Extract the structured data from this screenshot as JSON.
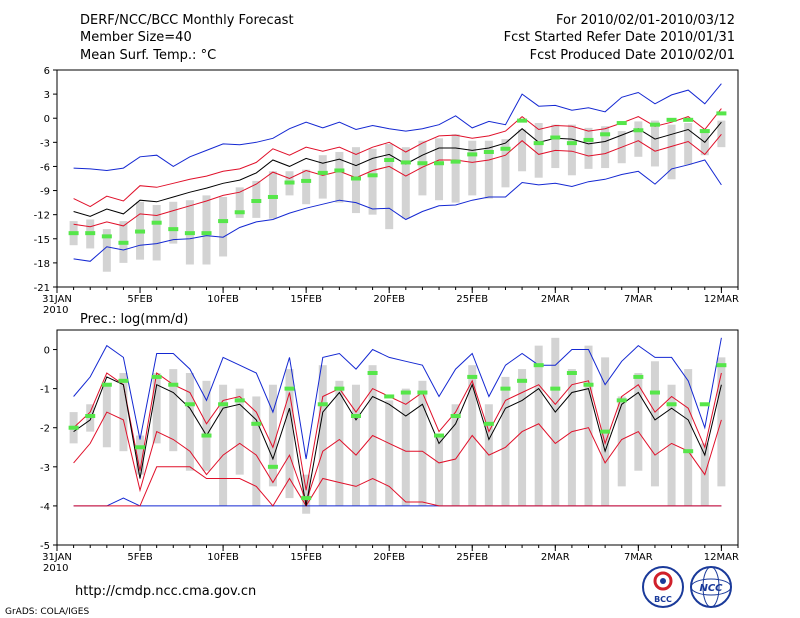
{
  "header": {
    "title": "DERF/NCC/BCC Monthly Forecast",
    "member_size": "Member Size=40",
    "variable": "Mean Surf. Temp.: °C",
    "period": "For 2010/02/01-2010/03/12",
    "started": "Fcst Started Refer Date 2010/01/31",
    "produced": "Fcst Produced Date 2010/02/01"
  },
  "footer": {
    "url": "http://cmdp.ncc.cma.gov.cn",
    "grads": "GrADS: COLA/IGES",
    "logo_bcc": "BCC",
    "logo_ncc": "NCC"
  },
  "colors": {
    "grey_bar": "#d3d3d3",
    "ensemble_mean": "#000000",
    "std_band": "#e0102a",
    "min_max": "#1428d2",
    "median_marker": "#56e64a"
  },
  "chart_data": [
    {
      "type": "line",
      "title": "Mean Surf. Temp.: °C",
      "ylim": [
        -21,
        6
      ],
      "yticks": [
        6,
        3,
        0,
        -3,
        -6,
        -9,
        -12,
        -15,
        -18,
        -21
      ],
      "x_tick_labels": [
        "31JAN",
        "5FEB",
        "10FEB",
        "15FEB",
        "20FEB",
        "25FEB",
        "2MAR",
        "7MAR",
        "12MAR"
      ],
      "x_tick_days": [
        0,
        5,
        10,
        15,
        20,
        25,
        30,
        35,
        40
      ],
      "x_sub_label": "2010",
      "days": [
        1,
        2,
        3,
        4,
        5,
        6,
        7,
        8,
        9,
        10,
        11,
        12,
        13,
        14,
        15,
        16,
        17,
        18,
        19,
        20,
        21,
        22,
        23,
        24,
        25,
        26,
        27,
        28,
        29,
        30,
        31,
        32,
        33,
        34,
        35,
        36,
        37,
        38,
        39,
        40
      ],
      "series": [
        {
          "name": "max",
          "values": [
            -6.2,
            -6.3,
            -6.5,
            -6.2,
            -4.8,
            -4.6,
            -6.0,
            -4.8,
            -4.0,
            -3.2,
            -3.3,
            -3.0,
            -2.5,
            -1.3,
            -0.5,
            -1.2,
            -0.5,
            -1.4,
            -0.9,
            -1.3,
            -1.6,
            -1.3,
            -0.8,
            0.3,
            -1.2,
            -0.4,
            -0.8,
            3.0,
            1.5,
            1.6,
            1.0,
            1.3,
            0.8,
            2.6,
            3.2,
            1.8,
            2.9,
            3.5,
            1.8,
            4.3
          ]
        },
        {
          "name": "upper",
          "values": [
            -10.0,
            -11.0,
            -9.7,
            -10.3,
            -8.4,
            -8.6,
            -8.1,
            -7.6,
            -7.2,
            -6.6,
            -6.3,
            -5.5,
            -3.8,
            -4.6,
            -3.6,
            -4.1,
            -3.6,
            -4.5,
            -3.6,
            -3.0,
            -4.2,
            -3.1,
            -2.2,
            -2.1,
            -2.5,
            -2.2,
            -1.6,
            0.2,
            -1.4,
            -0.9,
            -1.0,
            -1.6,
            -1.3,
            -0.6,
            0.2,
            -1.0,
            -0.5,
            0.2,
            -1.4,
            1.2
          ]
        },
        {
          "name": "mean",
          "values": [
            -11.6,
            -12.2,
            -11.3,
            -11.9,
            -10.2,
            -10.4,
            -9.8,
            -9.2,
            -8.7,
            -8.1,
            -7.7,
            -6.8,
            -5.2,
            -6.0,
            -5.0,
            -5.6,
            -5.1,
            -5.9,
            -5.0,
            -4.5,
            -5.7,
            -4.6,
            -3.7,
            -3.7,
            -4.0,
            -3.7,
            -3.1,
            -1.3,
            -3.0,
            -2.5,
            -2.6,
            -3.2,
            -2.9,
            -2.1,
            -1.3,
            -2.6,
            -2.0,
            -1.4,
            -3.0,
            -0.5
          ]
        },
        {
          "name": "lower",
          "values": [
            -13.2,
            -13.5,
            -12.9,
            -13.4,
            -11.9,
            -12.1,
            -11.5,
            -10.9,
            -10.3,
            -9.6,
            -9.2,
            -8.2,
            -6.7,
            -7.5,
            -6.5,
            -7.1,
            -6.6,
            -7.4,
            -6.5,
            -6.0,
            -7.2,
            -6.1,
            -5.2,
            -5.2,
            -5.5,
            -5.2,
            -4.6,
            -2.8,
            -4.5,
            -4.0,
            -4.1,
            -4.7,
            -4.4,
            -3.6,
            -2.8,
            -4.1,
            -3.5,
            -2.9,
            -4.5,
            -2.0
          ]
        },
        {
          "name": "min",
          "values": [
            -17.5,
            -17.8,
            -16.0,
            -16.4,
            -15.8,
            -15.6,
            -15.1,
            -15.0,
            -14.6,
            -14.8,
            -13.6,
            -12.9,
            -12.6,
            -11.8,
            -11.2,
            -10.7,
            -10.2,
            -10.5,
            -11.3,
            -11.2,
            -12.6,
            -11.6,
            -10.9,
            -10.8,
            -10.2,
            -9.8,
            -9.8,
            -8.0,
            -8.3,
            -8.1,
            -8.5,
            -7.9,
            -7.6,
            -7.0,
            -6.6,
            -8.2,
            -6.3,
            -5.8,
            -5.2,
            -8.3
          ]
        },
        {
          "name": "box_top",
          "values": [
            -12.8,
            -12.6,
            -13.8,
            -12.8,
            -10.4,
            -10.8,
            -10.4,
            -10.2,
            -9.6,
            -9.8,
            -8.6,
            -7.8,
            -6.6,
            -6.6,
            -6.4,
            -4.6,
            -4.2,
            -3.6,
            -3.8,
            -3.2,
            -3.6,
            -2.8,
            -2.5,
            -2.0,
            -2.8,
            -2.8,
            -2.6,
            -1.4,
            -0.6,
            -0.8,
            -0.8,
            -1.2,
            -1.0,
            -1.6,
            -0.4,
            -0.3,
            -0.8,
            -0.6,
            -1.6,
            -0.3
          ]
        },
        {
          "name": "box_bottom",
          "values": [
            -15.8,
            -16.2,
            -19.1,
            -18.0,
            -17.6,
            -17.7,
            -15.6,
            -18.2,
            -18.2,
            -17.2,
            -12.4,
            -12.4,
            -12.5,
            -9.6,
            -10.7,
            -10.0,
            -10.5,
            -11.8,
            -12.0,
            -13.8,
            -12.5,
            -9.6,
            -10.2,
            -10.5,
            -9.6,
            -10.0,
            -8.6,
            -6.6,
            -7.4,
            -6.2,
            -7.1,
            -6.3,
            -6.2,
            -5.6,
            -4.8,
            -6.0,
            -7.6,
            -5.8,
            -4.6,
            -3.6
          ]
        },
        {
          "name": "median",
          "values": [
            -14.3,
            -14.3,
            -14.7,
            -15.5,
            -14.1,
            -13.0,
            -13.8,
            -14.3,
            -14.3,
            -12.8,
            -11.7,
            -10.3,
            -9.8,
            -8.0,
            -7.8,
            -6.8,
            -6.5,
            -7.5,
            -7.1,
            -5.2,
            -5.5,
            -5.6,
            -5.6,
            -5.4,
            -4.5,
            -4.2,
            -3.8,
            -0.3,
            -3.1,
            -2.4,
            -3.1,
            -2.7,
            -2.0,
            -0.6,
            -1.5,
            -0.8,
            -0.2,
            -0.2,
            -1.6,
            0.6
          ]
        }
      ]
    },
    {
      "type": "line",
      "title": "Prec.: log(mm/d)",
      "ylim": [
        -5,
        0.5
      ],
      "yticks": [
        0,
        -1,
        -2,
        -3,
        -4,
        -5
      ],
      "x_tick_labels": [
        "31JAN",
        "5FEB",
        "10FEB",
        "15FEB",
        "20FEB",
        "25FEB",
        "2MAR",
        "7MAR",
        "12MAR"
      ],
      "x_tick_days": [
        0,
        5,
        10,
        15,
        20,
        25,
        30,
        35,
        40
      ],
      "x_sub_label": "2010",
      "days": [
        1,
        2,
        3,
        4,
        5,
        6,
        7,
        8,
        9,
        10,
        11,
        12,
        13,
        14,
        15,
        16,
        17,
        18,
        19,
        20,
        21,
        22,
        23,
        24,
        25,
        26,
        27,
        28,
        29,
        30,
        31,
        32,
        33,
        34,
        35,
        36,
        37,
        38,
        39,
        40
      ],
      "series": [
        {
          "name": "max",
          "values": [
            -1.2,
            -0.7,
            0.1,
            -0.2,
            -2.3,
            -0.1,
            -0.1,
            -0.5,
            -1.3,
            -0.2,
            -0.4,
            -0.6,
            -1.6,
            -0.2,
            -2.8,
            -0.2,
            -0.1,
            -0.5,
            0.0,
            -0.2,
            -0.3,
            -0.4,
            -1.2,
            -0.5,
            -0.1,
            -1.2,
            -0.4,
            -0.1,
            -0.4,
            -0.4,
            0.0,
            0.0,
            -0.9,
            -0.3,
            0.1,
            -0.2,
            -0.2,
            -0.8,
            -2.0,
            0.3
          ]
        },
        {
          "name": "upper",
          "values": [
            -2.0,
            -1.6,
            -0.6,
            -0.9,
            -3.1,
            -0.6,
            -0.9,
            -1.1,
            -1.9,
            -1.3,
            -1.2,
            -1.6,
            -2.5,
            -1.1,
            -3.6,
            -1.2,
            -1.0,
            -1.6,
            -1.0,
            -1.2,
            -1.4,
            -1.1,
            -2.1,
            -1.6,
            -0.8,
            -2.1,
            -1.3,
            -1.1,
            -0.9,
            -1.4,
            -0.9,
            -0.8,
            -2.4,
            -1.2,
            -0.9,
            -1.6,
            -1.2,
            -1.5,
            -2.5,
            -0.6
          ]
        },
        {
          "name": "mean",
          "values": [
            -2.1,
            -1.8,
            -0.7,
            -0.9,
            -3.3,
            -0.9,
            -1.1,
            -1.5,
            -2.2,
            -1.5,
            -1.4,
            -1.8,
            -2.8,
            -1.5,
            -4.0,
            -1.6,
            -1.1,
            -1.8,
            -1.2,
            -1.4,
            -1.7,
            -1.4,
            -2.4,
            -1.9,
            -0.9,
            -2.3,
            -1.5,
            -1.3,
            -1.0,
            -1.6,
            -1.1,
            -1.0,
            -2.6,
            -1.4,
            -1.1,
            -1.8,
            -1.5,
            -1.8,
            -2.7,
            -0.9
          ]
        },
        {
          "name": "lower",
          "values": [
            -2.9,
            -2.4,
            -1.6,
            -1.8,
            -3.6,
            -2.1,
            -2.3,
            -2.6,
            -3.2,
            -2.7,
            -2.4,
            -2.7,
            -3.4,
            -2.7,
            -3.9,
            -2.6,
            -2.3,
            -2.7,
            -2.2,
            -2.4,
            -2.6,
            -2.6,
            -2.9,
            -2.8,
            -2.2,
            -2.7,
            -2.5,
            -2.1,
            -1.9,
            -2.4,
            -2.1,
            -2.0,
            -2.9,
            -2.3,
            -2.1,
            -2.7,
            -2.4,
            -2.6,
            -3.2,
            -1.8
          ]
        },
        {
          "name": "lower2",
          "values": [
            -4.0,
            -4.0,
            -4.0,
            -4.0,
            -4.0,
            -3.0,
            -3.0,
            -3.0,
            -3.3,
            -3.3,
            -3.3,
            -3.5,
            -4.0,
            -3.3,
            -4.0,
            -3.3,
            -3.4,
            -3.5,
            -3.3,
            -3.5,
            -3.9,
            -3.9,
            -4.0,
            -4.0,
            -4.0,
            -4.0,
            -4.0,
            -4.0,
            -4.0,
            -4.0,
            -4.0,
            -4.0,
            -4.0,
            -4.0,
            -4.0,
            -4.0,
            -4.0,
            -4.0,
            -4.0,
            -4.0
          ]
        },
        {
          "name": "min",
          "values": [
            -4.0,
            -4.0,
            -4.0,
            -3.8,
            -4.0,
            -4.0,
            -4.0,
            -4.0,
            -4.0,
            -4.0,
            -4.0,
            -4.0,
            -4.0,
            -4.0,
            -4.0,
            -4.0,
            -4.0,
            -4.0,
            -4.0,
            -4.0,
            -4.0,
            -4.0,
            -4.0,
            -4.0,
            -4.0,
            -4.0,
            -4.0,
            -4.0,
            -4.0,
            -4.0,
            -4.0,
            -4.0,
            -4.0,
            -4.0,
            -4.0,
            -4.0,
            -4.0,
            -4.0,
            -4.0,
            -4.0
          ]
        },
        {
          "name": "box_top",
          "values": [
            -1.6,
            -1.4,
            -0.9,
            -0.6,
            -2.2,
            -0.6,
            -0.5,
            -0.6,
            -0.8,
            -0.9,
            -1.0,
            -1.2,
            -0.9,
            -0.5,
            -3.2,
            -0.4,
            -0.8,
            -0.9,
            -0.4,
            -1.3,
            -1.0,
            -0.8,
            -2.2,
            -1.4,
            -0.4,
            -1.4,
            -0.7,
            -0.5,
            0.1,
            0.3,
            -0.5,
            0.1,
            -0.2,
            -1.2,
            -0.6,
            -0.3,
            -0.9,
            -0.5,
            -2.4,
            -0.2
          ]
        },
        {
          "name": "box_bottom",
          "values": [
            -2.4,
            -2.1,
            -2.5,
            -2.6,
            -3.2,
            -2.4,
            -2.6,
            -3.1,
            -3.1,
            -4.0,
            -3.2,
            -4.0,
            -3.5,
            -3.8,
            -4.2,
            -4.0,
            -4.0,
            -4.0,
            -4.0,
            -4.0,
            -4.0,
            -4.0,
            -4.0,
            -4.0,
            -4.0,
            -4.0,
            -4.0,
            -4.0,
            -4.0,
            -4.0,
            -4.0,
            -4.0,
            -4.0,
            -3.5,
            -3.1,
            -3.5,
            -4.0,
            -4.0,
            -4.0,
            -3.5
          ]
        },
        {
          "name": "median",
          "values": [
            -2.0,
            -1.7,
            -0.9,
            -0.8,
            -2.5,
            -0.7,
            -0.9,
            -1.4,
            -2.2,
            -1.4,
            -1.3,
            -1.9,
            -3.0,
            -1.0,
            -3.8,
            -1.4,
            -1.0,
            -1.7,
            -0.6,
            -1.2,
            -1.1,
            -1.1,
            -2.2,
            -1.7,
            -0.7,
            -1.9,
            -1.0,
            -0.8,
            -0.4,
            -1.0,
            -0.6,
            -0.9,
            -2.1,
            -1.3,
            -0.7,
            -1.1,
            -1.4,
            -2.6,
            -1.4,
            -0.4
          ]
        }
      ]
    }
  ]
}
